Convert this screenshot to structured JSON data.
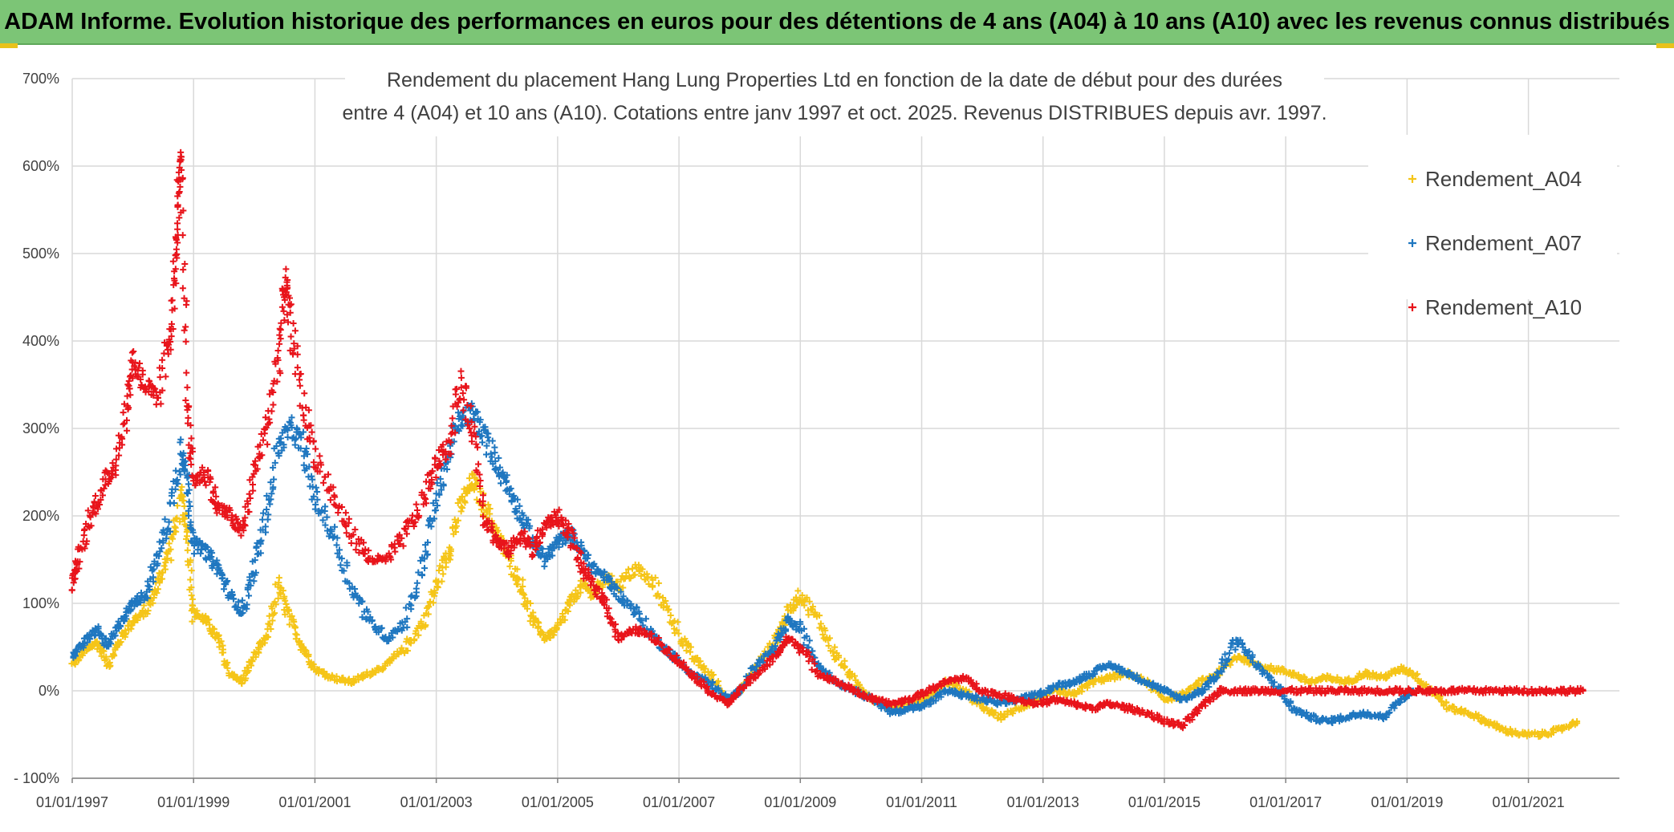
{
  "header": {
    "title": "ADAM Informe. Evolution historique des performances en euros pour des détentions de 4 ans (A04) à 10 ans (A10) avec les revenus connus distribués"
  },
  "chart_data": {
    "type": "scatter",
    "title_line1": "Rendement du placement Hang Lung Properties Ltd en fonction de la date de début pour des durées",
    "title_line2": "entre 4 (A04) et 10 ans (A10). Cotations entre janv 1997 et oct. 2025. Revenus DISTRIBUES depuis avr. 1997.",
    "xlabel": "",
    "ylabel": "",
    "x_range": [
      "1997-01-01",
      "2022-01-01"
    ],
    "ylim": [
      -100,
      700
    ],
    "y_ticks": [
      -100,
      0,
      100,
      200,
      300,
      400,
      500,
      600,
      700
    ],
    "y_tick_labels": [
      "- 100%",
      "0%",
      "100%",
      "200%",
      "300%",
      "400%",
      "500%",
      "600%",
      "700%"
    ],
    "x_tick_labels": [
      "01/01/1997",
      "01/01/1999",
      "01/01/2001",
      "01/01/2003",
      "01/01/2005",
      "01/01/2007",
      "01/01/2009",
      "01/01/2011",
      "01/01/2013",
      "01/01/2015",
      "01/01/2017",
      "01/01/2019",
      "01/01/2021"
    ],
    "x_ticks": [
      1997,
      1999,
      2001,
      2003,
      2005,
      2007,
      2009,
      2011,
      2013,
      2015,
      2017,
      2019,
      2021
    ],
    "grid": true,
    "legend_position": "top-right",
    "series": [
      {
        "name": "Rendement_A04",
        "color": "#f5c518",
        "points": [
          [
            1997.0,
            30
          ],
          [
            1997.2,
            45
          ],
          [
            1997.4,
            55
          ],
          [
            1997.6,
            30
          ],
          [
            1997.8,
            60
          ],
          [
            1998.0,
            80
          ],
          [
            1998.2,
            90
          ],
          [
            1998.4,
            120
          ],
          [
            1998.6,
            160
          ],
          [
            1998.8,
            220
          ],
          [
            1998.9,
            180
          ],
          [
            1999.0,
            90
          ],
          [
            1999.2,
            80
          ],
          [
            1999.4,
            60
          ],
          [
            1999.6,
            20
          ],
          [
            1999.8,
            10
          ],
          [
            2000.0,
            40
          ],
          [
            2000.2,
            60
          ],
          [
            2000.4,
            120
          ],
          [
            2000.6,
            80
          ],
          [
            2000.8,
            50
          ],
          [
            2001.0,
            25
          ],
          [
            2001.3,
            15
          ],
          [
            2001.6,
            10
          ],
          [
            2001.9,
            20
          ],
          [
            2002.2,
            30
          ],
          [
            2002.5,
            50
          ],
          [
            2002.8,
            80
          ],
          [
            2003.0,
            120
          ],
          [
            2003.2,
            160
          ],
          [
            2003.4,
            210
          ],
          [
            2003.6,
            240
          ],
          [
            2003.8,
            210
          ],
          [
            2004.0,
            180
          ],
          [
            2004.2,
            150
          ],
          [
            2004.4,
            120
          ],
          [
            2004.6,
            80
          ],
          [
            2004.8,
            60
          ],
          [
            2005.0,
            70
          ],
          [
            2005.2,
            100
          ],
          [
            2005.4,
            120
          ],
          [
            2005.6,
            110
          ],
          [
            2005.8,
            130
          ],
          [
            2006.0,
            120
          ],
          [
            2006.3,
            140
          ],
          [
            2006.6,
            120
          ],
          [
            2006.9,
            80
          ],
          [
            2007.2,
            40
          ],
          [
            2007.5,
            20
          ],
          [
            2007.8,
            -10
          ],
          [
            2008.0,
            0
          ],
          [
            2008.3,
            30
          ],
          [
            2008.6,
            60
          ],
          [
            2008.8,
            90
          ],
          [
            2009.0,
            110
          ],
          [
            2009.3,
            80
          ],
          [
            2009.6,
            40
          ],
          [
            2009.9,
            10
          ],
          [
            2010.2,
            -10
          ],
          [
            2010.5,
            -20
          ],
          [
            2010.8,
            -15
          ],
          [
            2011.1,
            -10
          ],
          [
            2011.4,
            10
          ],
          [
            2011.7,
            0
          ],
          [
            2012.0,
            -20
          ],
          [
            2012.3,
            -30
          ],
          [
            2012.6,
            -20
          ],
          [
            2012.9,
            -10
          ],
          [
            2013.2,
            0
          ],
          [
            2013.5,
            -5
          ],
          [
            2013.8,
            10
          ],
          [
            2014.1,
            15
          ],
          [
            2014.4,
            20
          ],
          [
            2014.7,
            10
          ],
          [
            2015.0,
            -10
          ],
          [
            2015.3,
            -5
          ],
          [
            2015.6,
            10
          ],
          [
            2015.9,
            20
          ],
          [
            2016.2,
            40
          ],
          [
            2016.5,
            30
          ],
          [
            2016.8,
            25
          ],
          [
            2017.1,
            20
          ],
          [
            2017.4,
            10
          ],
          [
            2017.7,
            15
          ],
          [
            2018.0,
            10
          ],
          [
            2018.3,
            20
          ],
          [
            2018.6,
            15
          ],
          [
            2018.9,
            25
          ],
          [
            2019.1,
            20
          ],
          [
            2019.4,
            0
          ],
          [
            2019.7,
            -20
          ],
          [
            2020.0,
            -25
          ],
          [
            2020.3,
            -35
          ],
          [
            2020.6,
            -45
          ],
          [
            2020.9,
            -50
          ],
          [
            2021.2,
            -50
          ],
          [
            2021.5,
            -45
          ],
          [
            2021.8,
            -35
          ]
        ]
      },
      {
        "name": "Rendement_A07",
        "color": "#1f77c0",
        "points": [
          [
            1997.0,
            40
          ],
          [
            1997.2,
            55
          ],
          [
            1997.4,
            70
          ],
          [
            1997.6,
            50
          ],
          [
            1997.8,
            80
          ],
          [
            1998.0,
            100
          ],
          [
            1998.2,
            110
          ],
          [
            1998.4,
            150
          ],
          [
            1998.6,
            200
          ],
          [
            1998.8,
            280
          ],
          [
            1998.9,
            240
          ],
          [
            1999.0,
            170
          ],
          [
            1999.2,
            160
          ],
          [
            1999.4,
            140
          ],
          [
            1999.6,
            110
          ],
          [
            1999.8,
            90
          ],
          [
            2000.0,
            140
          ],
          [
            2000.2,
            200
          ],
          [
            2000.4,
            280
          ],
          [
            2000.6,
            300
          ],
          [
            2000.8,
            280
          ],
          [
            2001.0,
            220
          ],
          [
            2001.3,
            180
          ],
          [
            2001.6,
            120
          ],
          [
            2001.9,
            80
          ],
          [
            2002.2,
            60
          ],
          [
            2002.5,
            80
          ],
          [
            2002.8,
            150
          ],
          [
            2003.0,
            220
          ],
          [
            2003.2,
            270
          ],
          [
            2003.4,
            310
          ],
          [
            2003.6,
            320
          ],
          [
            2003.8,
            290
          ],
          [
            2004.0,
            260
          ],
          [
            2004.2,
            230
          ],
          [
            2004.4,
            200
          ],
          [
            2004.6,
            170
          ],
          [
            2004.8,
            150
          ],
          [
            2005.0,
            170
          ],
          [
            2005.2,
            180
          ],
          [
            2005.4,
            160
          ],
          [
            2005.6,
            140
          ],
          [
            2005.8,
            130
          ],
          [
            2006.0,
            110
          ],
          [
            2006.3,
            90
          ],
          [
            2006.6,
            60
          ],
          [
            2006.9,
            40
          ],
          [
            2007.2,
            20
          ],
          [
            2007.5,
            10
          ],
          [
            2007.8,
            -10
          ],
          [
            2008.0,
            0
          ],
          [
            2008.3,
            30
          ],
          [
            2008.6,
            50
          ],
          [
            2008.8,
            80
          ],
          [
            2009.0,
            70
          ],
          [
            2009.3,
            30
          ],
          [
            2009.6,
            10
          ],
          [
            2009.9,
            0
          ],
          [
            2010.2,
            -10
          ],
          [
            2010.5,
            -25
          ],
          [
            2010.8,
            -20
          ],
          [
            2011.1,
            -15
          ],
          [
            2011.4,
            0
          ],
          [
            2011.7,
            -5
          ],
          [
            2012.0,
            -10
          ],
          [
            2012.3,
            -15
          ],
          [
            2012.6,
            -10
          ],
          [
            2012.9,
            -5
          ],
          [
            2013.2,
            5
          ],
          [
            2013.5,
            10
          ],
          [
            2013.8,
            20
          ],
          [
            2014.1,
            30
          ],
          [
            2014.4,
            20
          ],
          [
            2014.7,
            10
          ],
          [
            2015.0,
            0
          ],
          [
            2015.3,
            -10
          ],
          [
            2015.6,
            0
          ],
          [
            2015.9,
            20
          ],
          [
            2016.2,
            60
          ],
          [
            2016.5,
            30
          ],
          [
            2016.8,
            10
          ],
          [
            2017.1,
            -20
          ],
          [
            2017.4,
            -30
          ],
          [
            2017.7,
            -35
          ],
          [
            2018.0,
            -30
          ],
          [
            2018.3,
            -25
          ],
          [
            2018.6,
            -30
          ],
          [
            2018.9,
            -10
          ],
          [
            2019.1,
            0
          ]
        ]
      },
      {
        "name": "Rendement_A10",
        "color": "#e8141b",
        "points": [
          [
            1997.0,
            120
          ],
          [
            1997.1,
            150
          ],
          [
            1997.3,
            200
          ],
          [
            1997.5,
            230
          ],
          [
            1997.7,
            260
          ],
          [
            1997.9,
            320
          ],
          [
            1998.0,
            380
          ],
          [
            1998.2,
            350
          ],
          [
            1998.4,
            330
          ],
          [
            1998.6,
            400
          ],
          [
            1998.7,
            480
          ],
          [
            1998.75,
            560
          ],
          [
            1998.8,
            600
          ],
          [
            1998.9,
            330
          ],
          [
            1999.0,
            240
          ],
          [
            1999.2,
            250
          ],
          [
            1999.4,
            210
          ],
          [
            1999.6,
            200
          ],
          [
            1999.8,
            180
          ],
          [
            2000.0,
            250
          ],
          [
            2000.2,
            300
          ],
          [
            2000.4,
            380
          ],
          [
            2000.5,
            470
          ],
          [
            2000.6,
            420
          ],
          [
            2000.8,
            330
          ],
          [
            2001.0,
            270
          ],
          [
            2001.3,
            220
          ],
          [
            2001.6,
            180
          ],
          [
            2001.9,
            150
          ],
          [
            2002.2,
            150
          ],
          [
            2002.5,
            180
          ],
          [
            2002.8,
            220
          ],
          [
            2003.0,
            260
          ],
          [
            2003.2,
            280
          ],
          [
            2003.4,
            350
          ],
          [
            2003.6,
            300
          ],
          [
            2003.8,
            200
          ],
          [
            2004.0,
            170
          ],
          [
            2004.2,
            160
          ],
          [
            2004.4,
            180
          ],
          [
            2004.6,
            160
          ],
          [
            2004.8,
            190
          ],
          [
            2005.0,
            200
          ],
          [
            2005.2,
            180
          ],
          [
            2005.4,
            140
          ],
          [
            2005.6,
            120
          ],
          [
            2005.8,
            100
          ],
          [
            2006.0,
            60
          ],
          [
            2006.3,
            70
          ],
          [
            2006.6,
            60
          ],
          [
            2006.9,
            40
          ],
          [
            2007.2,
            20
          ],
          [
            2007.5,
            0
          ],
          [
            2007.8,
            -15
          ],
          [
            2008.0,
            0
          ],
          [
            2008.3,
            20
          ],
          [
            2008.6,
            40
          ],
          [
            2008.8,
            60
          ],
          [
            2009.0,
            50
          ],
          [
            2009.3,
            20
          ],
          [
            2009.6,
            10
          ],
          [
            2009.9,
            0
          ],
          [
            2010.2,
            -10
          ],
          [
            2010.5,
            -15
          ],
          [
            2010.8,
            -10
          ],
          [
            2011.1,
            0
          ],
          [
            2011.4,
            10
          ],
          [
            2011.7,
            15
          ],
          [
            2012.0,
            0
          ],
          [
            2012.3,
            -5
          ],
          [
            2012.6,
            -10
          ],
          [
            2012.9,
            -15
          ],
          [
            2013.2,
            -10
          ],
          [
            2013.5,
            -15
          ],
          [
            2013.8,
            -20
          ],
          [
            2014.1,
            -15
          ],
          [
            2014.4,
            -20
          ],
          [
            2014.7,
            -25
          ],
          [
            2015.0,
            -35
          ],
          [
            2015.3,
            -40
          ],
          [
            2015.6,
            -20
          ],
          [
            2015.9,
            0
          ],
          [
            2016.2,
            0
          ],
          [
            2016.5,
            0
          ],
          [
            2016.8,
            0
          ],
          [
            2017.1,
            0
          ],
          [
            2017.4,
            0
          ],
          [
            2017.7,
            0
          ],
          [
            2018.0,
            0
          ],
          [
            2018.3,
            0
          ],
          [
            2018.6,
            0
          ],
          [
            2018.9,
            0
          ],
          [
            2019.2,
            0
          ],
          [
            2019.5,
            0
          ],
          [
            2019.8,
            0
          ],
          [
            2020.1,
            0
          ],
          [
            2020.4,
            0
          ],
          [
            2020.7,
            0
          ],
          [
            2021.0,
            0
          ],
          [
            2021.3,
            0
          ],
          [
            2021.6,
            0
          ],
          [
            2021.9,
            0
          ]
        ]
      }
    ]
  }
}
